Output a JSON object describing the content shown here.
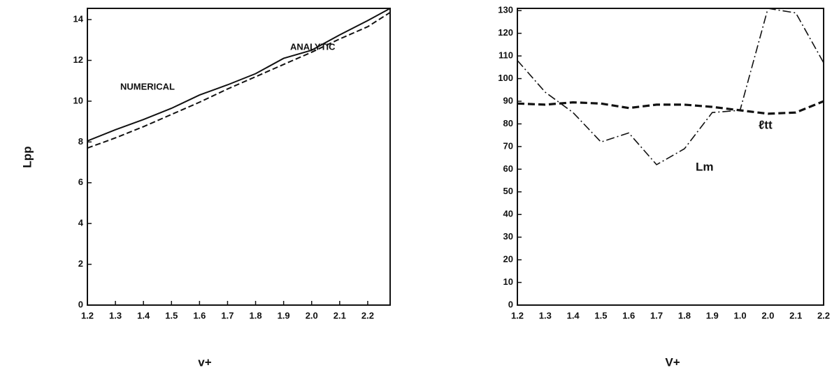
{
  "chart_data": [
    {
      "type": "line",
      "ylabel": "Lpp",
      "xlabel": "v+",
      "x": [
        1.2,
        1.3,
        1.4,
        1.5,
        1.6,
        1.7,
        1.8,
        1.9,
        2.0,
        2.1,
        2.2,
        2.28
      ],
      "xlim": [
        1.2,
        2.28
      ],
      "xticks": [
        1.2,
        1.3,
        1.4,
        1.5,
        1.6,
        1.7,
        1.8,
        1.9,
        {
          "value": 2.0,
          "label": "2.0"
        },
        2.1,
        2.2
      ],
      "ylim": [
        0,
        14.55
      ],
      "yticks": [
        0,
        2,
        4,
        6,
        8,
        10,
        12,
        14
      ],
      "series": [
        {
          "name": "NUMERICAL",
          "color": "#111111",
          "dash": "solid",
          "values": [
            8.05,
            8.6,
            9.1,
            9.65,
            10.3,
            10.8,
            11.35,
            12.1,
            12.5,
            13.25,
            13.95,
            14.55
          ]
        },
        {
          "name": "ANALYTIC",
          "color": "#111111",
          "dash": "dashed",
          "values": [
            7.7,
            8.2,
            8.75,
            9.35,
            9.95,
            10.6,
            11.2,
            11.8,
            12.4,
            13.05,
            13.65,
            14.35
          ]
        }
      ]
    },
    {
      "type": "line",
      "xlabel": "V+",
      "categories": [
        "1.2",
        "1.3",
        "1.4",
        "1.5",
        "1.6",
        "1.7",
        "1.8",
        "1.9",
        "1.0",
        "2.0",
        "2.1",
        "2.2"
      ],
      "ylim": [
        0,
        131
      ],
      "yticks": [
        0,
        10,
        20,
        30,
        40,
        50,
        60,
        70,
        80,
        90,
        100,
        110,
        120,
        130
      ],
      "series": [
        {
          "name": "Lm",
          "color": "#111111",
          "dash": "dashdot",
          "values": [
            108,
            94,
            85,
            72,
            76,
            62,
            69,
            85,
            86,
            131,
            129,
            107
          ]
        },
        {
          "name": "ℓtt",
          "color": "#111111",
          "dash": "bold-dashed",
          "values": [
            89,
            88.5,
            89.5,
            89,
            87,
            88.5,
            88.5,
            87.5,
            86,
            84.5,
            85,
            90
          ]
        }
      ]
    }
  ]
}
